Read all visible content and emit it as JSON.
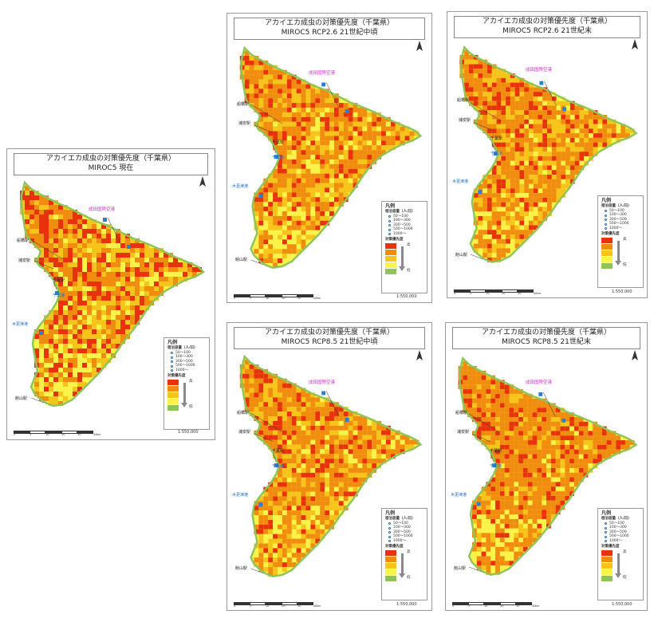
{
  "colors": {
    "very_high": "#e8320e",
    "high": "#f08c10",
    "mid": "#f6c41a",
    "low": "#fbf24a",
    "very_low": "#8fc45a",
    "sea": "#ffffff",
    "station_marker": "#2a7fd4",
    "airport_label": "#cc33cc"
  },
  "panels": [
    {
      "id": "now",
      "title_line1": "アカイエカ成虫の対策優先度（千葉県）",
      "title_line2": "MIROC5 現在"
    },
    {
      "id": "rcp26-mid",
      "title_line1": "アカイエカ成虫の対策優先度（千葉県）",
      "title_line2": "MIROC5 RCP2.6 21世紀中頃"
    },
    {
      "id": "rcp26-end",
      "title_line1": "アカイエカ成虫の対策優先度（千葉県）",
      "title_line2": "MIROC5 RCP2.6 21世紀末"
    },
    {
      "id": "rcp85-mid",
      "title_line1": "アカイエカ成虫の対策優先度（千葉県）",
      "title_line2": "MIROC5 RCP8.5 21世紀中頃"
    },
    {
      "id": "rcp85-end",
      "title_line1": "アカイエカ成虫の対策優先度（千葉県）",
      "title_line2": "MIROC5 RCP8.5 21世紀末"
    }
  ],
  "map_labels": {
    "airport": "成田国際空港",
    "funabashi": "船橋駅",
    "urayasu": "浦安駅",
    "chiba": "千葉駅",
    "chiba_port": "千葉港",
    "kisarazu": "木更津港",
    "tateyama": "館山駅"
  },
  "legend": {
    "title": "凡例",
    "lodging_header": "宿泊容量（人/日）",
    "bins": [
      "50～100",
      "100～300",
      "300～500",
      "500～1000",
      "1000～"
    ],
    "priority_header": "対策優先度",
    "high": "高",
    "low": "低"
  },
  "scale": {
    "ticks": [
      "0",
      "5",
      "10",
      "20",
      "30",
      "40"
    ],
    "unit": "km",
    "ratio": "1:550,000"
  },
  "north_symbol": "north-arrow",
  "priority_mix": {
    "now": [
      0.22,
      0.34,
      0.3,
      0.14
    ],
    "rcp26-mid": [
      0.16,
      0.45,
      0.27,
      0.12
    ],
    "rcp26-end": [
      0.17,
      0.46,
      0.26,
      0.11
    ],
    "rcp85-mid": [
      0.17,
      0.48,
      0.24,
      0.11
    ],
    "rcp85-end": [
      0.14,
      0.63,
      0.16,
      0.07
    ]
  }
}
